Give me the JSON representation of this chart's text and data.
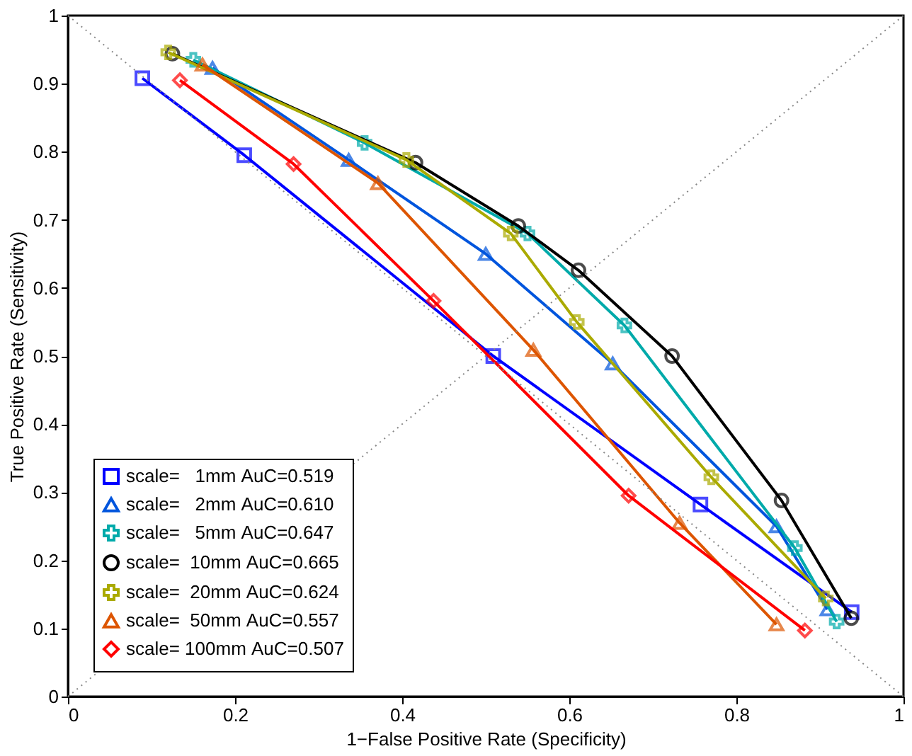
{
  "chart_data": {
    "type": "line",
    "xlabel": "1−False Positive Rate (Specificity)",
    "ylabel": "True Positive Rate (Sensitivity)",
    "xlim": [
      0,
      1
    ],
    "ylim": [
      0,
      1
    ],
    "xticks": [
      0,
      0.2,
      0.4,
      0.6,
      0.8,
      1
    ],
    "yticks": [
      0,
      0.1,
      0.2,
      0.3,
      0.4,
      0.5,
      0.6,
      0.7,
      0.8,
      0.9,
      1
    ],
    "grid": false,
    "legend": "bottom left",
    "series": [
      {
        "name": "scale=   1mm AuC=0.519",
        "color": "#0000ff",
        "marker": "square",
        "x": [
          0.089,
          0.211,
          0.509,
          0.757,
          0.938
        ],
        "values": [
          0.908,
          0.795,
          0.5,
          0.282,
          0.124
        ]
      },
      {
        "name": "scale=   2mm AuC=0.610",
        "color": "#0055dd",
        "marker": "triangle",
        "x": [
          0.173,
          0.336,
          0.5,
          0.652,
          0.848,
          0.909
        ],
        "values": [
          0.923,
          0.788,
          0.65,
          0.489,
          0.25,
          0.128
        ]
      },
      {
        "name": "scale=   5mm AuC=0.647",
        "color": "#00aaaa",
        "marker": "cross",
        "x": [
          0.15,
          0.355,
          0.55,
          0.666,
          0.87,
          0.92
        ],
        "values": [
          0.935,
          0.813,
          0.68,
          0.545,
          0.218,
          0.11
        ]
      },
      {
        "name": "scale=  10mm AuC=0.665",
        "color": "#000000",
        "marker": "circle",
        "x": [
          0.125,
          0.416,
          0.539,
          0.611,
          0.723,
          0.854,
          0.9375
        ],
        "values": [
          0.944,
          0.784,
          0.691,
          0.626,
          0.5,
          0.288,
          0.115
        ]
      },
      {
        "name": "scale=  20mm AuC=0.624",
        "color": "#aaaa00",
        "marker": "cross",
        "x": [
          0.12,
          0.405,
          0.53,
          0.609,
          0.77,
          0.907
        ],
        "values": [
          0.946,
          0.788,
          0.68,
          0.55,
          0.322,
          0.144
        ]
      },
      {
        "name": "scale=  50mm AuC=0.557",
        "color": "#dd5500",
        "marker": "triangle",
        "x": [
          0.161,
          0.371,
          0.557,
          0.732,
          0.848
        ],
        "values": [
          0.928,
          0.754,
          0.509,
          0.255,
          0.106
        ]
      },
      {
        "name": "scale= 100mm AuC=0.507",
        "color": "#ff0000",
        "marker": "diamond",
        "x": [
          0.134,
          0.27,
          0.4375,
          0.671,
          0.882
        ],
        "values": [
          0.905,
          0.782,
          0.581,
          0.295,
          0.097
        ]
      },
      {
        "color": "#888888",
        "marker": "none",
        "line_style": "dotted",
        "x": [
          0,
          1
        ],
        "values": [
          0,
          1
        ]
      },
      {
        "color": "#888888",
        "marker": "none",
        "line_style": "dotted",
        "x": [
          0,
          1
        ],
        "values": [
          1,
          0
        ]
      }
    ]
  }
}
